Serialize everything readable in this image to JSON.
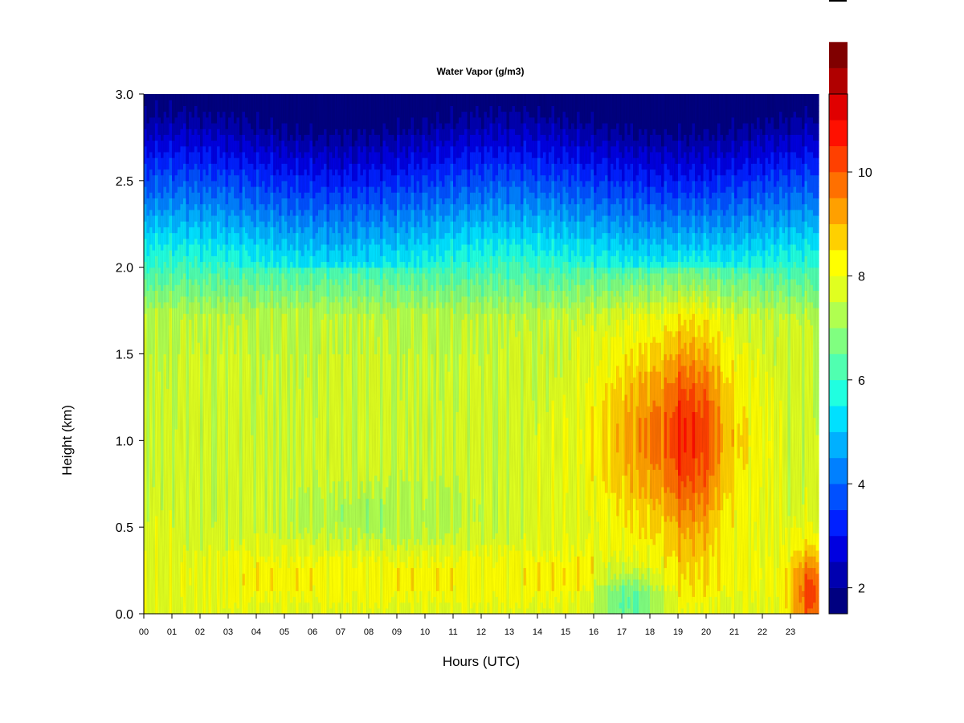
{
  "chart_data": {
    "type": "heatmap",
    "title": "Water Vapor (g/m3)",
    "xlabel": "Hours (UTC)",
    "ylabel": "Height (km)",
    "x_ticks": [
      "00",
      "01",
      "02",
      "03",
      "04",
      "05",
      "06",
      "07",
      "08",
      "09",
      "10",
      "11",
      "12",
      "13",
      "14",
      "15",
      "16",
      "17",
      "18",
      "19",
      "20",
      "21",
      "22",
      "23"
    ],
    "y_ticks": [
      "0.0",
      "0.5",
      "1.0",
      "1.5",
      "2.0",
      "2.5",
      "3.0"
    ],
    "xlim": [
      0,
      24
    ],
    "ylim": [
      0,
      3.0
    ],
    "colorbar": {
      "range": [
        1.5,
        11.5
      ],
      "step": 0.5,
      "tick_values": [
        2,
        4,
        6,
        8,
        10
      ],
      "tick_labels": [
        "2",
        "4",
        "6",
        "8",
        "10"
      ],
      "colors": [
        "#000080",
        "#0000b0",
        "#0000e0",
        "#0020ff",
        "#0050ff",
        "#0080ff",
        "#00b0ff",
        "#00e0ff",
        "#20ffe0",
        "#50ffb0",
        "#80ff80",
        "#b0ff50",
        "#e0ff20",
        "#ffff00",
        "#ffd000",
        "#ffa000",
        "#ff7000",
        "#ff4000",
        "#ff1000",
        "#e00000",
        "#b00000",
        "#800000"
      ]
    },
    "z_value_range": [
      1.5,
      11
    ],
    "grid": false
  }
}
